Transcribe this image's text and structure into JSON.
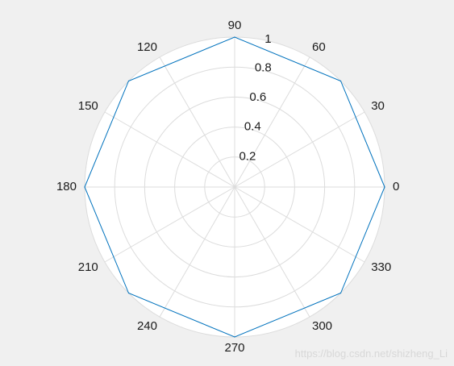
{
  "chart_data": {
    "type": "polar-line",
    "theta_deg": [
      0,
      45,
      90,
      135,
      180,
      225,
      270,
      315,
      360
    ],
    "r": [
      1,
      1,
      1,
      1,
      1,
      1,
      1,
      1,
      1
    ],
    "theta_ticks": [
      "0",
      "30",
      "60",
      "90",
      "120",
      "150",
      "180",
      "210",
      "240",
      "270",
      "300",
      "330"
    ],
    "theta_tick_values": [
      0,
      30,
      60,
      90,
      120,
      150,
      180,
      210,
      240,
      270,
      300,
      330
    ],
    "r_ticks": [
      "0.2",
      "0.4",
      "0.6",
      "0.8",
      "1"
    ],
    "r_tick_values": [
      0.2,
      0.4,
      0.6,
      0.8,
      1
    ],
    "rlim": [
      0,
      1
    ],
    "r_label_angle_deg": 80,
    "grid": true,
    "title": "",
    "series": [
      {
        "color": "#0072bd"
      }
    ],
    "colors": {
      "axes_background": "#ffffff",
      "figure_background": "#f0f0f0",
      "grid": "#dcdcdc"
    }
  },
  "watermark": "https://blog.csdn.net/shizheng_Li"
}
